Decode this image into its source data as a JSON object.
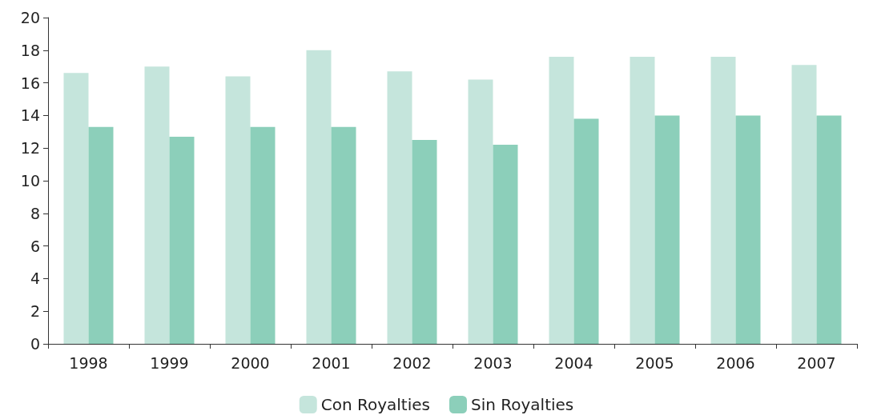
{
  "chart_data": {
    "type": "bar",
    "categories": [
      "1998",
      "1999",
      "2000",
      "2001",
      "2002",
      "2003",
      "2004",
      "2005",
      "2006",
      "2007"
    ],
    "series": [
      {
        "name": "Con Royalties",
        "color": "#c5e5dc",
        "values": [
          16.6,
          17.0,
          16.4,
          18.0,
          16.7,
          16.2,
          17.6,
          17.6,
          17.6,
          17.1
        ]
      },
      {
        "name": "Sin Royalties",
        "color": "#8ccfba",
        "values": [
          13.3,
          12.7,
          13.3,
          13.3,
          12.5,
          12.2,
          13.8,
          14.0,
          14.0,
          14.0
        ]
      }
    ],
    "ylim": [
      0,
      20
    ],
    "yticks": [
      0,
      2,
      4,
      6,
      8,
      10,
      12,
      14,
      16,
      18,
      20
    ],
    "grid": false,
    "legend": "bottom"
  }
}
